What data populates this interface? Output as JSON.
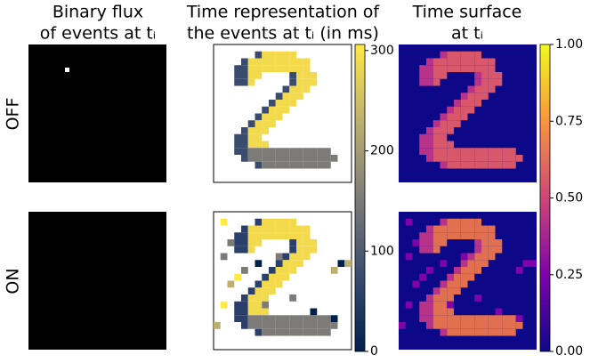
{
  "columns": [
    {
      "title": [
        "Binary flux",
        "of events at tᵢ"
      ]
    },
    {
      "title": [
        "Time representation of",
        "the events at tᵢ (in ms)"
      ]
    },
    {
      "title": [
        "Time surface",
        "at tᵢ"
      ]
    }
  ],
  "rows": [
    "OFF",
    "ON"
  ],
  "colorbars": [
    {
      "colormap": "cividis",
      "lim": [
        0,
        306
      ],
      "ticks": [
        0,
        100,
        200,
        300
      ]
    },
    {
      "colormap": "plasma",
      "lim": [
        0,
        1
      ],
      "ticks": [
        {
          "value": 0,
          "label": "0.00"
        },
        {
          "value": 0.25,
          "label": "0.25"
        },
        {
          "value": 0.5,
          "label": "0.50"
        },
        {
          "value": 0.75,
          "label": "0.75"
        },
        {
          "value": 1,
          "label": "1.00"
        }
      ]
    }
  ]
}
